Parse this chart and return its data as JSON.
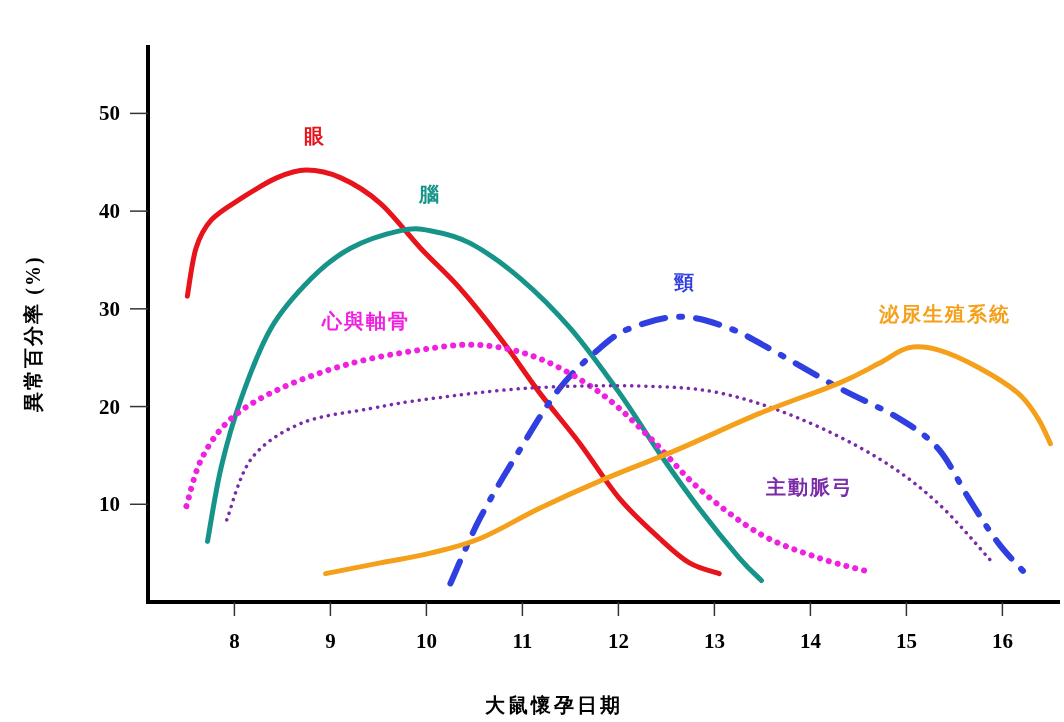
{
  "chart_data": {
    "type": "line",
    "xlabel": "大鼠懷孕日期",
    "ylabel": "異常百分率 (%)",
    "xlim": [
      7.1,
      16.6
    ],
    "ylim": [
      0,
      57
    ],
    "xticks": [
      8,
      9,
      10,
      11,
      12,
      13,
      14,
      15,
      16
    ],
    "yticks": [
      10,
      20,
      30,
      40,
      50
    ],
    "grid": false,
    "series": [
      {
        "name": "眼",
        "color": "#e8141c",
        "line_style": "solid",
        "x": [
          7.51,
          7.6,
          7.76,
          8.07,
          8.44,
          8.75,
          9.11,
          9.52,
          9.94,
          10.35,
          10.77,
          11.18,
          11.6,
          12.01,
          12.43,
          12.74,
          13.05
        ],
        "values": [
          31.3,
          36.2,
          39.1,
          41.3,
          43.4,
          44.2,
          43.4,
          40.8,
          36.2,
          32.1,
          27.0,
          21.4,
          16.2,
          10.6,
          6.5,
          4.0,
          2.9
        ]
      },
      {
        "name": "腦",
        "color": "#17948a",
        "line_style": "solid",
        "x": [
          7.72,
          7.86,
          8.07,
          8.38,
          8.8,
          9.21,
          9.73,
          10.04,
          10.46,
          10.98,
          11.5,
          12.01,
          12.43,
          12.84,
          13.26,
          13.49
        ],
        "values": [
          6.2,
          13.7,
          20.8,
          28.0,
          33.1,
          36.2,
          38.0,
          38.0,
          36.7,
          33.1,
          28.0,
          21.4,
          15.2,
          9.6,
          4.5,
          2.2
        ]
      },
      {
        "name": "頸",
        "color": "#2f3fe0",
        "line_style": "dashed",
        "x": [
          10.25,
          10.56,
          10.98,
          11.39,
          11.81,
          12.12,
          12.64,
          13.16,
          13.67,
          14.3,
          14.92,
          15.33,
          15.65,
          15.96,
          16.27
        ],
        "values": [
          1.9,
          8.6,
          15.7,
          21.9,
          26.0,
          28.0,
          29.2,
          28.0,
          25.4,
          21.9,
          18.8,
          15.7,
          10.6,
          6.0,
          2.6
        ]
      },
      {
        "name": "心與軸骨",
        "color": "#f020e0",
        "line_style": "dotted",
        "x": [
          7.5,
          7.66,
          7.97,
          8.49,
          9.21,
          9.94,
          10.56,
          11.18,
          11.81,
          12.33,
          12.84,
          13.47,
          14.09,
          14.61
        ],
        "values": [
          9.8,
          14.7,
          18.8,
          21.9,
          24.4,
          25.8,
          26.3,
          24.9,
          21.4,
          16.8,
          11.6,
          7.0,
          4.5,
          3.1
        ]
      },
      {
        "name": "主動脈弓",
        "color": "#7a2aa8",
        "line_style": "dotted",
        "x": [
          7.92,
          8.18,
          8.7,
          9.42,
          10.04,
          11.08,
          12.22,
          13.05,
          13.88,
          14.71,
          15.33,
          15.9
        ],
        "values": [
          8.4,
          14.7,
          18.3,
          19.8,
          20.8,
          21.9,
          22.1,
          21.4,
          18.8,
          14.7,
          10.1,
          4.0
        ]
      },
      {
        "name": "泌尿生殖系統",
        "color": "#f5a01a",
        "line_style": "solid",
        "x": [
          8.95,
          9.52,
          10.04,
          10.56,
          11.18,
          11.81,
          12.64,
          13.47,
          14.3,
          14.71,
          15.02,
          15.33,
          15.75,
          16.16,
          16.37,
          16.5
        ],
        "values": [
          2.9,
          4.0,
          5.0,
          6.5,
          9.6,
          12.4,
          15.7,
          19.3,
          22.4,
          24.4,
          26.0,
          25.8,
          24.0,
          21.4,
          18.8,
          16.2
        ]
      }
    ]
  }
}
